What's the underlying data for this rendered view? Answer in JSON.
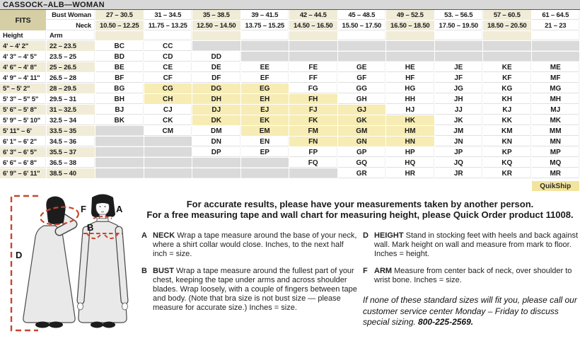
{
  "title": "CASSOCK–ALB—WOMAN",
  "table": {
    "fits_label": "FITS",
    "bust_row_label": "Bust Woman",
    "neck_row_label": "Neck",
    "height_col_label": "Height",
    "arm_col_label": "Arm",
    "quikship_label": "QuikShip",
    "columns": [
      {
        "bust": "27 – 30.5",
        "neck": "10.50 – 12.25"
      },
      {
        "bust": "31 – 34.5",
        "neck": "11.75 – 13.25"
      },
      {
        "bust": "35 – 38.5",
        "neck": "12.50 – 14.50"
      },
      {
        "bust": "39 – 41.5",
        "neck": "13.75 – 15.25"
      },
      {
        "bust": "42 – 44.5",
        "neck": "14.50 – 16.50"
      },
      {
        "bust": "45 – 48.5",
        "neck": "15.50 – 17.50"
      },
      {
        "bust": "49 – 52.5",
        "neck": "16.50 – 18.50"
      },
      {
        "bust": "53. – 56.5",
        "neck": "17.50 – 19.50"
      },
      {
        "bust": "57 – 60.5",
        "neck": "18.50 – 20.50"
      },
      {
        "bust": "61 – 64.5",
        "neck": "21 – 23"
      }
    ],
    "rows": [
      {
        "height": "4' – 4' 2\"",
        "arm": "22 – 23.5",
        "cells": [
          {
            "c": "BC",
            "s": "n"
          },
          {
            "c": "CC",
            "s": "n"
          },
          {
            "c": "",
            "s": "g"
          },
          {
            "c": "",
            "s": "g"
          },
          {
            "c": "",
            "s": "g"
          },
          {
            "c": "",
            "s": "g"
          },
          {
            "c": "",
            "s": "g"
          },
          {
            "c": "",
            "s": "g"
          },
          {
            "c": "",
            "s": "g"
          },
          {
            "c": "",
            "s": "g"
          }
        ]
      },
      {
        "height": "4' 3\" – 4' 5\"",
        "arm": "23.5 – 25",
        "cells": [
          {
            "c": "BD",
            "s": "n"
          },
          {
            "c": "CD",
            "s": "n"
          },
          {
            "c": "DD",
            "s": "n"
          },
          {
            "c": "",
            "s": "g"
          },
          {
            "c": "",
            "s": "g"
          },
          {
            "c": "",
            "s": "g"
          },
          {
            "c": "",
            "s": "g"
          },
          {
            "c": "",
            "s": "g"
          },
          {
            "c": "",
            "s": "g"
          },
          {
            "c": "",
            "s": "g"
          }
        ]
      },
      {
        "height": "4' 6\" – 4' 8\"",
        "arm": "25 – 26.5",
        "cells": [
          {
            "c": "BE",
            "s": "n"
          },
          {
            "c": "CE",
            "s": "n"
          },
          {
            "c": "DE",
            "s": "n"
          },
          {
            "c": "EE",
            "s": "n"
          },
          {
            "c": "FE",
            "s": "n"
          },
          {
            "c": "GE",
            "s": "n"
          },
          {
            "c": "HE",
            "s": "n"
          },
          {
            "c": "JE",
            "s": "n"
          },
          {
            "c": "KE",
            "s": "n"
          },
          {
            "c": "ME",
            "s": "n"
          }
        ]
      },
      {
        "height": "4' 9\" – 4' 11\"",
        "arm": "26.5 – 28",
        "cells": [
          {
            "c": "BF",
            "s": "n"
          },
          {
            "c": "CF",
            "s": "n"
          },
          {
            "c": "DF",
            "s": "n"
          },
          {
            "c": "EF",
            "s": "n"
          },
          {
            "c": "FF",
            "s": "n"
          },
          {
            "c": "GF",
            "s": "n"
          },
          {
            "c": "HF",
            "s": "n"
          },
          {
            "c": "JF",
            "s": "n"
          },
          {
            "c": "KF",
            "s": "n"
          },
          {
            "c": "MF",
            "s": "n"
          }
        ]
      },
      {
        "height": "5\" – 5' 2\"",
        "arm": "28 – 29.5",
        "cells": [
          {
            "c": "BG",
            "s": "n"
          },
          {
            "c": "CG",
            "s": "y"
          },
          {
            "c": "DG",
            "s": "y"
          },
          {
            "c": "EG",
            "s": "y"
          },
          {
            "c": "FG",
            "s": "n"
          },
          {
            "c": "GG",
            "s": "n"
          },
          {
            "c": "HG",
            "s": "n"
          },
          {
            "c": "JG",
            "s": "n"
          },
          {
            "c": "KG",
            "s": "n"
          },
          {
            "c": "MG",
            "s": "n"
          }
        ]
      },
      {
        "height": "5' 3\" – 5\" 5\"",
        "arm": "29.5 – 31",
        "cells": [
          {
            "c": "BH",
            "s": "n"
          },
          {
            "c": "CH",
            "s": "y"
          },
          {
            "c": "DH",
            "s": "y"
          },
          {
            "c": "EH",
            "s": "y"
          },
          {
            "c": "FH",
            "s": "y"
          },
          {
            "c": "GH",
            "s": "n"
          },
          {
            "c": "HH",
            "s": "n"
          },
          {
            "c": "JH",
            "s": "n"
          },
          {
            "c": "KH",
            "s": "n"
          },
          {
            "c": "MH",
            "s": "n"
          }
        ]
      },
      {
        "height": "5' 6\" – 5' 8\"",
        "arm": "31 – 32.5",
        "cells": [
          {
            "c": "BJ",
            "s": "n"
          },
          {
            "c": "CJ",
            "s": "n"
          },
          {
            "c": "DJ",
            "s": "y"
          },
          {
            "c": "EJ",
            "s": "y"
          },
          {
            "c": "FJ",
            "s": "y"
          },
          {
            "c": "GJ",
            "s": "y"
          },
          {
            "c": "HJ",
            "s": "n"
          },
          {
            "c": "JJ",
            "s": "n"
          },
          {
            "c": "KJ",
            "s": "n"
          },
          {
            "c": "MJ",
            "s": "n"
          }
        ]
      },
      {
        "height": "5' 9\" – 5' 10\"",
        "arm": "32.5 – 34",
        "cells": [
          {
            "c": "BK",
            "s": "n"
          },
          {
            "c": "CK",
            "s": "n"
          },
          {
            "c": "DK",
            "s": "y"
          },
          {
            "c": "EK",
            "s": "y"
          },
          {
            "c": "FK",
            "s": "y"
          },
          {
            "c": "GK",
            "s": "y"
          },
          {
            "c": "HK",
            "s": "y"
          },
          {
            "c": "JK",
            "s": "n"
          },
          {
            "c": "KK",
            "s": "n"
          },
          {
            "c": "MK",
            "s": "n"
          }
        ]
      },
      {
        "height": "5' 11\" – 6'",
        "arm": "33.5 – 35",
        "cells": [
          {
            "c": "",
            "s": "g"
          },
          {
            "c": "CM",
            "s": "n"
          },
          {
            "c": "DM",
            "s": "n"
          },
          {
            "c": "EM",
            "s": "y"
          },
          {
            "c": "FM",
            "s": "y"
          },
          {
            "c": "GM",
            "s": "y"
          },
          {
            "c": "HM",
            "s": "y"
          },
          {
            "c": "JM",
            "s": "n"
          },
          {
            "c": "KM",
            "s": "n"
          },
          {
            "c": "MM",
            "s": "n"
          }
        ]
      },
      {
        "height": "6' 1\" – 6' 2\"",
        "arm": "34.5 – 36",
        "cells": [
          {
            "c": "",
            "s": "g"
          },
          {
            "c": "",
            "s": "g"
          },
          {
            "c": "DN",
            "s": "n"
          },
          {
            "c": "EN",
            "s": "n"
          },
          {
            "c": "FN",
            "s": "y"
          },
          {
            "c": "GN",
            "s": "y"
          },
          {
            "c": "HN",
            "s": "y"
          },
          {
            "c": "JN",
            "s": "n"
          },
          {
            "c": "KN",
            "s": "n"
          },
          {
            "c": "MN",
            "s": "n"
          }
        ]
      },
      {
        "height": "6' 3\" – 6' 5\"",
        "arm": "35.5 – 37",
        "cells": [
          {
            "c": "",
            "s": "g"
          },
          {
            "c": "",
            "s": "g"
          },
          {
            "c": "DP",
            "s": "n"
          },
          {
            "c": "EP",
            "s": "n"
          },
          {
            "c": "FP",
            "s": "n"
          },
          {
            "c": "GP",
            "s": "n"
          },
          {
            "c": "HP",
            "s": "n"
          },
          {
            "c": "JP",
            "s": "n"
          },
          {
            "c": "KP",
            "s": "n"
          },
          {
            "c": "MP",
            "s": "n"
          }
        ]
      },
      {
        "height": "6' 6\" – 6' 8\"",
        "arm": "36.5 – 38",
        "cells": [
          {
            "c": "",
            "s": "g"
          },
          {
            "c": "",
            "s": "g"
          },
          {
            "c": "",
            "s": "g"
          },
          {
            "c": "",
            "s": "g"
          },
          {
            "c": "FQ",
            "s": "n"
          },
          {
            "c": "GQ",
            "s": "n"
          },
          {
            "c": "HQ",
            "s": "n"
          },
          {
            "c": "JQ",
            "s": "n"
          },
          {
            "c": "KQ",
            "s": "n"
          },
          {
            "c": "MQ",
            "s": "n"
          }
        ]
      },
      {
        "height": "6' 9\" – 6' 11\"",
        "arm": "38.5 – 40",
        "cells": [
          {
            "c": "",
            "s": "g"
          },
          {
            "c": "",
            "s": "g"
          },
          {
            "c": "",
            "s": "g"
          },
          {
            "c": "",
            "s": "g"
          },
          {
            "c": "",
            "s": "g"
          },
          {
            "c": "GR",
            "s": "n"
          },
          {
            "c": "HR",
            "s": "n"
          },
          {
            "c": "JR",
            "s": "n"
          },
          {
            "c": "KR",
            "s": "n"
          },
          {
            "c": "MR",
            "s": "n"
          }
        ]
      }
    ]
  },
  "intro": {
    "line1": "For accurate results, please have your measurements taken by another person.",
    "line2": "For a free measuring tape and wall chart for measuring height, please Quick Order product 11008."
  },
  "instructions": {
    "left": [
      {
        "letter": "A",
        "term": "NECK",
        "text": "Wrap a tape measure around the base of your neck, where a shirt collar would close. Inches, to the next half inch = size."
      },
      {
        "letter": "B",
        "term": "BUST",
        "text": "Wrap a tape measure around the fullest part of your chest, keeping the tape under arms and across shoulder blades. Wrap loosely, with a couple of fingers between tape and body. (Note that bra size is not bust size — please measure for accurate size.) Inches = size."
      }
    ],
    "right": [
      {
        "letter": "D",
        "term": "HEIGHT",
        "text": "Stand in stocking feet with heels and back against wall. Mark height on wall and measure from mark to floor. Inches = height."
      },
      {
        "letter": "F",
        "term": "ARM",
        "text": "Measure from center back of neck, over shoulder to wrist bone. Inches = size."
      }
    ]
  },
  "note": {
    "text": "If none of these standard sizes will fit you, please call our customer service center Monday – Friday to discuss special sizing. ",
    "phone": "800-225-2569."
  },
  "diagram": {
    "d_label": "D",
    "f_label": "F",
    "a_label": "A",
    "b_label": "B"
  },
  "colors": {
    "cream_stripe": "#f1ecd7",
    "quikship_highlight": "#f6ecb4",
    "quikship_badge": "#f3e49d",
    "unavailable_gray": "#dadada",
    "fits_tan": "#d6cfa6",
    "measure_red": "#c9452e",
    "title_gray": "#d8d8d8"
  }
}
